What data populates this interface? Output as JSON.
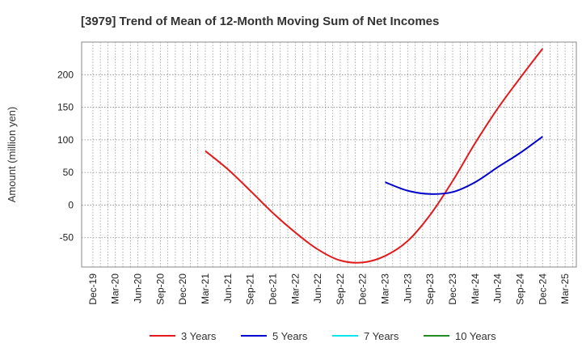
{
  "chart_data": {
    "type": "line",
    "title": "[3979]  Trend of Mean of 12-Month Moving Sum of Net Incomes",
    "xlabel": "",
    "ylabel": "Amount (million yen)",
    "categories": [
      "Dec-19",
      "Mar-20",
      "Jun-20",
      "Sep-20",
      "Dec-20",
      "Mar-21",
      "Jun-21",
      "Sep-21",
      "Dec-21",
      "Mar-22",
      "Jun-22",
      "Sep-22",
      "Dec-22",
      "Mar-23",
      "Jun-23",
      "Sep-23",
      "Dec-23",
      "Mar-24",
      "Jun-24",
      "Sep-24",
      "Dec-24",
      "Mar-25"
    ],
    "y_ticks": [
      -50,
      0,
      50,
      100,
      150,
      200
    ],
    "ylim": [
      -95,
      250
    ],
    "grid": true,
    "legend_position": "bottom",
    "series": [
      {
        "name": "3 Years",
        "color": "#e31a1c",
        "values": [
          null,
          null,
          null,
          null,
          null,
          83,
          55,
          22,
          -12,
          -42,
          -68,
          -85,
          -88,
          -78,
          -55,
          -15,
          37,
          95,
          148,
          195,
          240,
          null
        ]
      },
      {
        "name": "5 Years",
        "color": "#0000cc",
        "values": [
          null,
          null,
          null,
          null,
          null,
          null,
          null,
          null,
          null,
          null,
          null,
          null,
          null,
          35,
          22,
          17,
          20,
          35,
          58,
          80,
          105,
          null
        ]
      },
      {
        "name": "7 Years",
        "color": "#00e5ee",
        "values": [
          null,
          null,
          null,
          null,
          null,
          null,
          null,
          null,
          null,
          null,
          null,
          null,
          null,
          null,
          null,
          null,
          null,
          null,
          null,
          null,
          null,
          null
        ]
      },
      {
        "name": "10 Years",
        "color": "#228b22",
        "values": [
          null,
          null,
          null,
          null,
          null,
          null,
          null,
          null,
          null,
          null,
          null,
          null,
          null,
          null,
          null,
          null,
          null,
          null,
          null,
          null,
          null,
          null
        ]
      }
    ]
  }
}
